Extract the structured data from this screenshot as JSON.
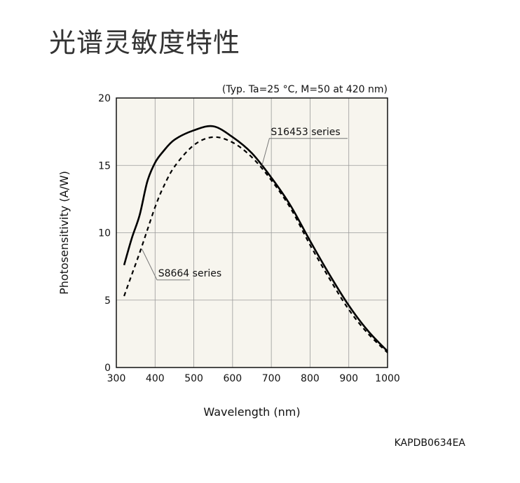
{
  "page": {
    "title": "光谱灵敏度特性"
  },
  "chart_data": {
    "type": "line",
    "title": "",
    "conditions": "(Typ. Ta=25 °C, M=50 at 420 nm)",
    "xlabel": "Wavelength (nm)",
    "ylabel": "Photosensitivity (A/W)",
    "xlim": [
      300,
      1000
    ],
    "ylim": [
      0,
      20
    ],
    "xticks": [
      300,
      400,
      500,
      600,
      700,
      800,
      900,
      1000
    ],
    "yticks": [
      0,
      5,
      10,
      15,
      20
    ],
    "grid": true,
    "background": "#f7f5ee",
    "series": [
      {
        "name": "S16453 series",
        "style": "solid",
        "x": [
          320,
          340,
          360,
          380,
          400,
          420,
          450,
          500,
          550,
          600,
          650,
          700,
          750,
          800,
          850,
          900,
          950,
          1000
        ],
        "y": [
          7.6,
          9.6,
          11.3,
          13.8,
          15.2,
          16.0,
          16.9,
          17.6,
          17.9,
          17.1,
          15.9,
          14.1,
          12.0,
          9.4,
          6.9,
          4.6,
          2.7,
          1.2
        ]
      },
      {
        "name": "S8664 series",
        "style": "dashed",
        "x": [
          320,
          340,
          360,
          380,
          400,
          420,
          450,
          500,
          550,
          600,
          650,
          700,
          750,
          800,
          850,
          900,
          950,
          1000
        ],
        "y": [
          5.3,
          6.9,
          8.5,
          10.2,
          11.9,
          13.3,
          14.9,
          16.5,
          17.1,
          16.7,
          15.6,
          13.9,
          11.8,
          9.1,
          6.6,
          4.3,
          2.5,
          1.1
        ]
      }
    ],
    "annotations": [
      "S16453 series",
      "S8664 series"
    ],
    "code": "KAPDB0634EA"
  }
}
